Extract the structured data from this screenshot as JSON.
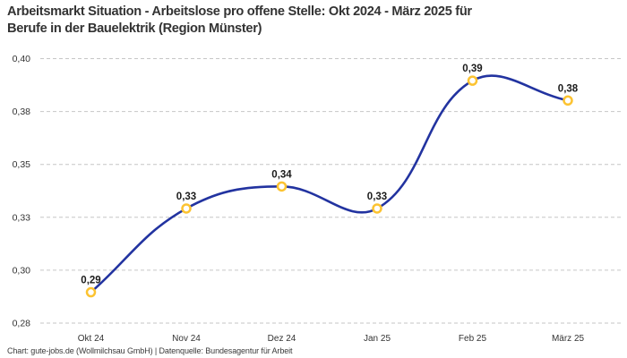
{
  "header": {
    "title_lines": [
      "Arbeitsmarkt Situation - Arbeitslose pro offene Stelle: Okt 2024 - März 2025 für",
      "Berufe in der Bauelektrik (Region Münster)"
    ]
  },
  "chart_data": {
    "type": "line",
    "title": "Arbeitsmarkt Situation - Arbeitslose pro offene Stelle: Okt 2024 - März 2025 für Berufe in der Bauelektrik (Region Münster)",
    "categories": [
      "Okt 24",
      "Nov 24",
      "Dez 24",
      "Jan 25",
      "Feb 25",
      "März 25"
    ],
    "values": [
      0.29,
      0.33,
      0.34,
      0.33,
      0.39,
      0.38
    ],
    "values_plotted": [
      0.294,
      0.332,
      0.342,
      0.332,
      0.39,
      0.381
    ],
    "point_labels": [
      "0,29",
      "0,33",
      "0,34",
      "0,33",
      "0,39",
      "0,38"
    ],
    "y_ticks": [
      {
        "value": 0.4,
        "label": "0,40"
      },
      {
        "value": 0.376,
        "label": "0,38"
      },
      {
        "value": 0.352,
        "label": "0,35"
      },
      {
        "value": 0.328,
        "label": "0,33"
      },
      {
        "value": 0.304,
        "label": "0,30"
      },
      {
        "value": 0.28,
        "label": "0,28"
      }
    ],
    "ylim": [
      0.28,
      0.4
    ],
    "xlabel": "",
    "ylabel": "",
    "grid": "horizontal-dashed",
    "legend": "none",
    "curve": "smooth"
  },
  "colors": {
    "line": "#2233A0",
    "marker_stroke": "#FCC331",
    "marker_fill": "#FFFFFF",
    "grid": "#C6C6C6",
    "axis_text": "#333333",
    "point_label_text": "#1B1B1B",
    "title_text": "#333333",
    "footer_text": "#3A3A3A",
    "background": "#FFFFFF"
  },
  "footer": {
    "text": "Chart: gute-jobs.de (Wollmilchsau GmbH) | Datenquelle: Bundesagentur für Arbeit"
  }
}
